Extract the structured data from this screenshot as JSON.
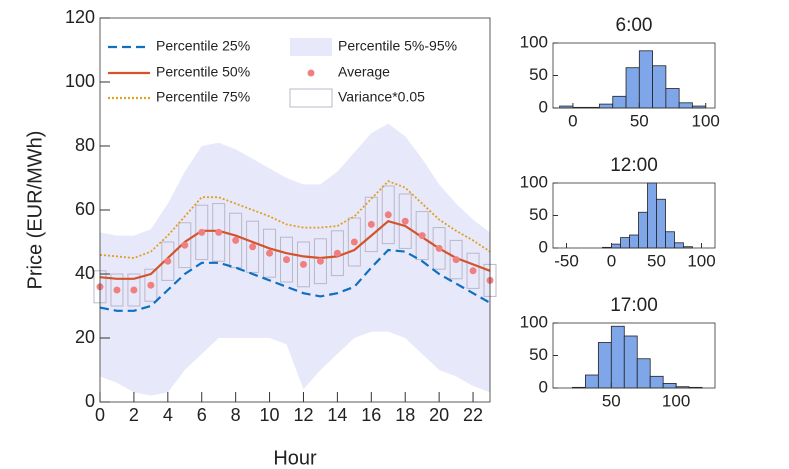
{
  "chart_data": [
    {
      "type": "line",
      "xlabel": "Hour",
      "ylabel": "Price (EUR/MWh)",
      "x": [
        0,
        1,
        2,
        3,
        4,
        5,
        6,
        7,
        8,
        9,
        10,
        11,
        12,
        13,
        14,
        15,
        16,
        17,
        18,
        19,
        20,
        21,
        22,
        23
      ],
      "xlim": [
        0,
        23
      ],
      "xticks": [
        0,
        2,
        4,
        6,
        8,
        10,
        12,
        14,
        16,
        18,
        20,
        22
      ],
      "ylim": [
        0,
        120
      ],
      "yticks": [
        0,
        20,
        40,
        60,
        80,
        100,
        120
      ],
      "band": {
        "name": "Percentile 5%-95%",
        "color": "#e8e8fb",
        "upper": [
          53,
          52,
          52,
          54,
          62,
          72,
          80,
          81,
          79,
          76,
          73,
          70,
          68,
          68,
          72,
          78,
          84,
          87,
          83,
          76,
          68,
          62,
          57,
          53
        ],
        "lower": [
          8,
          6,
          3,
          2,
          3,
          10,
          15,
          20,
          20,
          20,
          20,
          18,
          4,
          10,
          15,
          20,
          22,
          22,
          20,
          15,
          10,
          8,
          5,
          3
        ]
      },
      "boxes": {
        "name": "Variance*0.05",
        "color": "#b8b8c8",
        "values": [
          10,
          10,
          10,
          10,
          12,
          14,
          17,
          18,
          17,
          16,
          15,
          14,
          14,
          14,
          14,
          15,
          17,
          18,
          17,
          15,
          13,
          12,
          11,
          10
        ]
      },
      "series": [
        {
          "name": "Percentile 25%",
          "color": "#0f6fc0",
          "style": "dashed",
          "values": [
            29.5,
            28.5,
            28.5,
            30,
            35,
            40,
            43.5,
            43.5,
            42,
            40,
            38,
            36,
            34,
            33,
            34,
            36,
            42,
            47.5,
            47,
            44,
            40,
            37,
            34,
            31
          ]
        },
        {
          "name": "Percentile 50%",
          "color": "#d4532b",
          "style": "solid",
          "values": [
            39,
            38.5,
            38.5,
            40,
            45,
            50,
            53.5,
            53.5,
            52,
            50,
            48,
            46.5,
            45.5,
            45,
            45.5,
            47.5,
            52,
            56.5,
            55,
            51.5,
            48,
            45,
            43,
            41
          ]
        },
        {
          "name": "Percentile 75%",
          "color": "#e0a020",
          "style": "dotted",
          "values": [
            46,
            45.5,
            45,
            47,
            52,
            58,
            64,
            64,
            62,
            60,
            58,
            55.5,
            54.5,
            54.5,
            55,
            58,
            63.5,
            69,
            67,
            62,
            57,
            53.5,
            50.5,
            47
          ]
        },
        {
          "name": "Average",
          "color": "#f08080",
          "style": "markers",
          "values": [
            36,
            35,
            35,
            36.5,
            44,
            49,
            53,
            53,
            50.5,
            48.5,
            46.5,
            44.5,
            43,
            44,
            46.5,
            50,
            55.5,
            58.5,
            56.5,
            52,
            48,
            44.5,
            41,
            38
          ]
        }
      ]
    },
    {
      "type": "histogram",
      "title": "6:00",
      "color": "#7fa6e8",
      "bins": [
        -10,
        0,
        10,
        20,
        30,
        40,
        50,
        60,
        70,
        80,
        90,
        100
      ],
      "counts": [
        3,
        1,
        1,
        6,
        18,
        62,
        88,
        65,
        30,
        8,
        3
      ],
      "xlim": [
        -15,
        107
      ],
      "xticks": [
        0,
        50,
        100
      ],
      "ylim": [
        0,
        100
      ],
      "yticks": [
        0,
        50,
        100
      ]
    },
    {
      "type": "histogram",
      "title": "12:00",
      "color": "#7fa6e8",
      "bins": [
        -10,
        0,
        10,
        20,
        30,
        40,
        50,
        60,
        70,
        80,
        90
      ],
      "counts": [
        1,
        6,
        16,
        20,
        55,
        100,
        75,
        25,
        8,
        2
      ],
      "xlim": [
        -65,
        115
      ],
      "xticks": [
        -50,
        0,
        50,
        100
      ],
      "ylim": [
        0,
        100
      ],
      "yticks": [
        0,
        50,
        100
      ]
    },
    {
      "type": "histogram",
      "title": "17:00",
      "color": "#7fa6e8",
      "bins": [
        20,
        30,
        40,
        50,
        60,
        70,
        80,
        90,
        100,
        110,
        120
      ],
      "counts": [
        1,
        20,
        70,
        95,
        80,
        45,
        18,
        7,
        2,
        1
      ],
      "xlim": [
        5,
        130
      ],
      "xticks": [
        50,
        100
      ],
      "ylim": [
        0,
        100
      ],
      "yticks": [
        0,
        50,
        100
      ]
    }
  ]
}
